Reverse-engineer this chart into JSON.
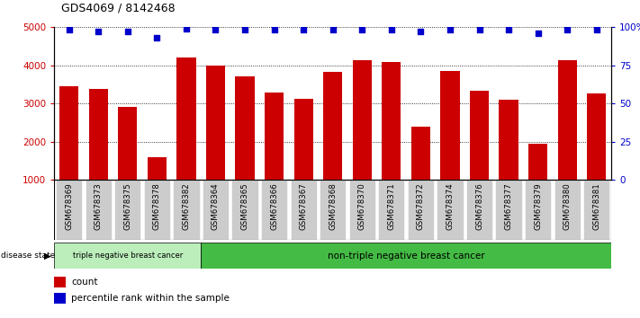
{
  "title": "GDS4069 / 8142468",
  "samples": [
    "GSM678369",
    "GSM678373",
    "GSM678375",
    "GSM678378",
    "GSM678382",
    "GSM678364",
    "GSM678365",
    "GSM678366",
    "GSM678367",
    "GSM678368",
    "GSM678370",
    "GSM678371",
    "GSM678372",
    "GSM678374",
    "GSM678376",
    "GSM678377",
    "GSM678379",
    "GSM678380",
    "GSM678381"
  ],
  "counts": [
    3450,
    3370,
    2900,
    1580,
    4200,
    4000,
    3700,
    3280,
    3120,
    3820,
    4130,
    4090,
    2380,
    3840,
    3320,
    3090,
    1950,
    4130,
    3260
  ],
  "percentile_ranks": [
    98,
    97,
    97,
    93,
    99,
    98,
    98,
    98,
    98,
    98,
    98,
    98,
    97,
    98,
    98,
    98,
    96,
    98,
    98
  ],
  "bar_color": "#cc0000",
  "dot_color": "#0000cc",
  "ylim_left": [
    1000,
    5000
  ],
  "ylim_right": [
    0,
    100
  ],
  "yticks_left": [
    1000,
    2000,
    3000,
    4000,
    5000
  ],
  "yticks_right": [
    0,
    25,
    50,
    75,
    100
  ],
  "yticklabels_right": [
    "0",
    "25",
    "50",
    "75",
    "100%"
  ],
  "group1_label": "triple negative breast cancer",
  "group2_label": "non-triple negative breast cancer",
  "group1_count": 5,
  "group2_count": 14,
  "disease_state_label": "disease state",
  "legend_count_label": "count",
  "legend_percentile_label": "percentile rank within the sample",
  "group1_bg": "#bbeebb",
  "group2_bg": "#44bb44",
  "sample_bg": "#cccccc",
  "title_fontsize": 9,
  "axis_color_left": "#cc0000",
  "axis_color_right": "#0000cc",
  "bar_color_legend": "#cc0000",
  "dot_color_legend": "#0000cc"
}
